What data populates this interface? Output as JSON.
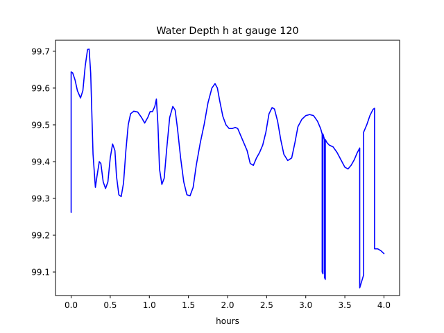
{
  "chart_data": {
    "type": "line",
    "title": "Water Depth h at gauge 120",
    "xlabel": "hours",
    "ylabel": "",
    "xlim": [
      -0.2,
      4.2
    ],
    "ylim": [
      99.036,
      99.73
    ],
    "xticks": [
      0.0,
      0.5,
      1.0,
      1.5,
      2.0,
      2.5,
      3.0,
      3.5,
      4.0
    ],
    "xtick_labels": [
      "0.0",
      "0.5",
      "1.0",
      "1.5",
      "2.0",
      "2.5",
      "3.0",
      "3.5",
      "4.0"
    ],
    "yticks": [
      99.1,
      99.2,
      99.3,
      99.4,
      99.5,
      99.6,
      99.7
    ],
    "ytick_labels": [
      "99.1",
      "99.2",
      "99.3",
      "99.4",
      "99.5",
      "99.6",
      "99.7"
    ],
    "grid": false,
    "line_color": "#0000ff",
    "series": [
      {
        "x": [
          0.0,
          0.0,
          0.02,
          0.05,
          0.08,
          0.12,
          0.15,
          0.18,
          0.21,
          0.23,
          0.25,
          0.28,
          0.31,
          0.33,
          0.36,
          0.38,
          0.41,
          0.44,
          0.47,
          0.5,
          0.53,
          0.56,
          0.58,
          0.61,
          0.64,
          0.67,
          0.7,
          0.73,
          0.76,
          0.8,
          0.85,
          0.9,
          0.94,
          0.98,
          1.01,
          1.04,
          1.07,
          1.09,
          1.11,
          1.13,
          1.16,
          1.19,
          1.22,
          1.26,
          1.3,
          1.33,
          1.36,
          1.4,
          1.44,
          1.48,
          1.52,
          1.56,
          1.6,
          1.65,
          1.7,
          1.75,
          1.8,
          1.84,
          1.87,
          1.9,
          1.94,
          1.98,
          2.02,
          2.06,
          2.1,
          2.13,
          2.16,
          2.2,
          2.25,
          2.29,
          2.33,
          2.37,
          2.41,
          2.45,
          2.49,
          2.53,
          2.57,
          2.6,
          2.64,
          2.68,
          2.72,
          2.77,
          2.82,
          2.86,
          2.9,
          2.95,
          3.0,
          3.05,
          3.1,
          3.15,
          3.19,
          3.21,
          3.21,
          3.22,
          3.22,
          3.24,
          3.24,
          3.25,
          3.25,
          3.27,
          3.3,
          3.35,
          3.4,
          3.45,
          3.5,
          3.54,
          3.58,
          3.62,
          3.66,
          3.69,
          3.69,
          3.74,
          3.74,
          3.78,
          3.82,
          3.86,
          3.88,
          3.88,
          3.92,
          3.96,
          4.0
        ],
        "y": [
          99.262,
          99.644,
          99.641,
          99.622,
          99.593,
          99.573,
          99.593,
          99.66,
          99.705,
          99.706,
          99.64,
          99.42,
          99.33,
          99.36,
          99.4,
          99.395,
          99.345,
          99.327,
          99.345,
          99.41,
          99.448,
          99.43,
          99.36,
          99.31,
          99.305,
          99.342,
          99.43,
          99.5,
          99.53,
          99.537,
          99.535,
          99.52,
          99.505,
          99.52,
          99.536,
          99.536,
          99.55,
          99.57,
          99.5,
          99.38,
          99.338,
          99.355,
          99.43,
          99.52,
          99.55,
          99.54,
          99.49,
          99.41,
          99.345,
          99.31,
          99.307,
          99.33,
          99.39,
          99.45,
          99.5,
          99.56,
          99.6,
          99.612,
          99.6,
          99.565,
          99.523,
          99.5,
          99.49,
          99.49,
          99.493,
          99.49,
          99.475,
          99.455,
          99.43,
          99.395,
          99.39,
          99.41,
          99.425,
          99.445,
          99.48,
          99.53,
          99.547,
          99.543,
          99.51,
          99.46,
          99.42,
          99.403,
          99.41,
          99.45,
          99.495,
          99.515,
          99.525,
          99.528,
          99.525,
          99.51,
          99.49,
          99.475,
          99.1,
          99.095,
          99.475,
          99.46,
          99.085,
          99.08,
          99.46,
          99.452,
          99.445,
          99.44,
          99.425,
          99.405,
          99.385,
          99.38,
          99.39,
          99.405,
          99.425,
          99.437,
          99.057,
          99.092,
          99.48,
          99.5,
          99.525,
          99.542,
          99.545,
          99.163,
          99.163,
          99.158,
          99.15
        ]
      }
    ]
  }
}
